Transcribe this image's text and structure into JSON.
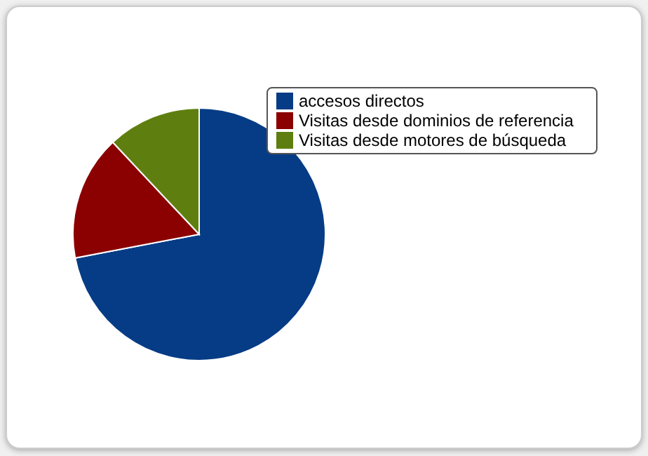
{
  "chart_data": {
    "type": "pie",
    "categories": [
      "accesos directos",
      "Visitas desde dominios de referencia",
      "Visitas desde motores de búsqueda"
    ],
    "values": [
      72,
      16,
      12
    ],
    "colors": [
      "#063c85",
      "#8b0000",
      "#5e7f0f"
    ],
    "legend": "top right"
  }
}
